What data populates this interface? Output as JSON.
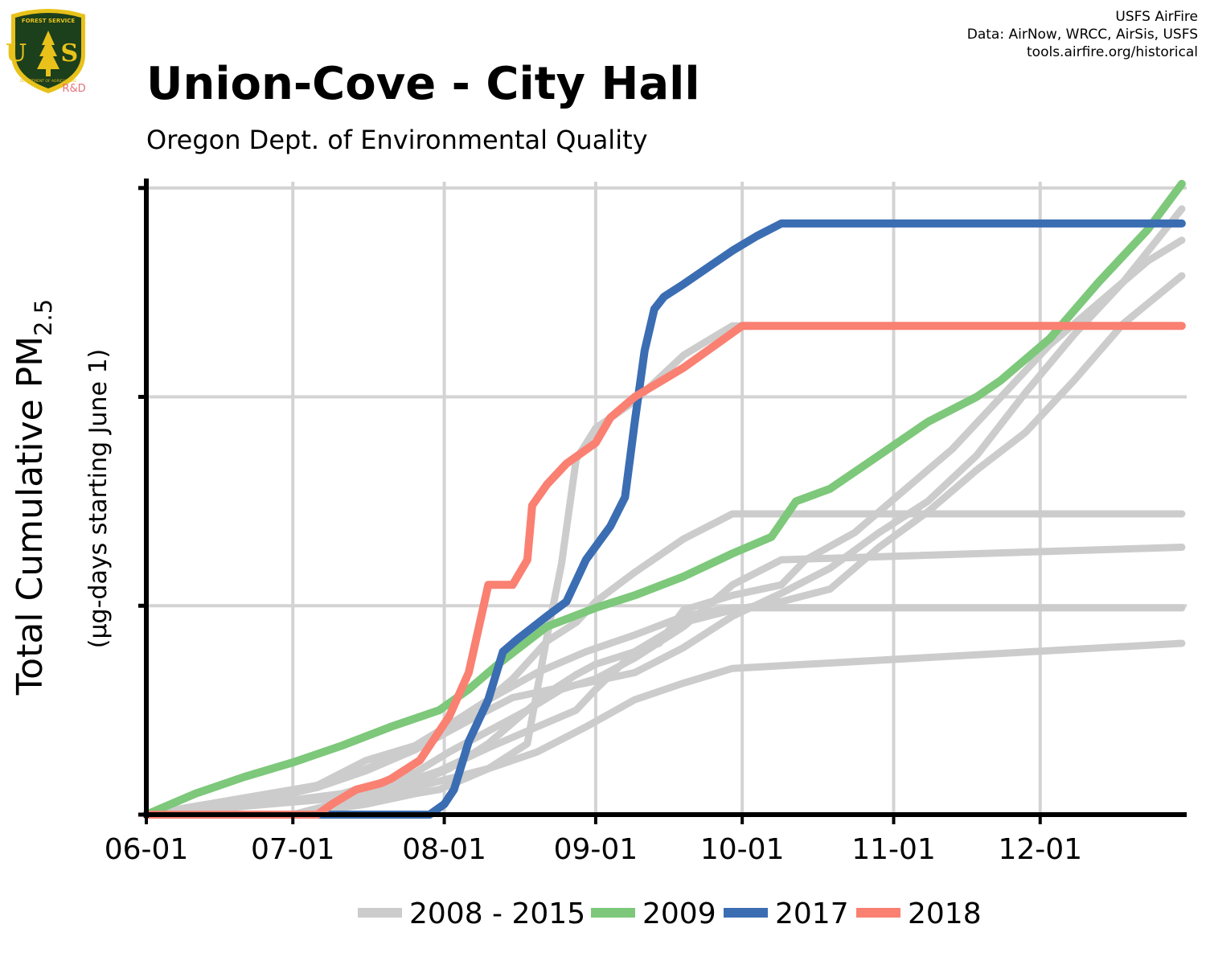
{
  "header": {
    "title": "Union-Cove - City Hall",
    "subtitle": "Oregon Dept. of Environmental Quality",
    "credits": [
      "USFS AirFire",
      "Data: AirNow, WRCC, AirSis, USFS",
      "tools.airfire.org/historical"
    ],
    "logo": {
      "top_text": "FOREST SERVICE",
      "letters": "U S",
      "bottom_text": "DEPARTMENT OF AGRICULTURE",
      "tag": "R&D"
    }
  },
  "colors": {
    "history": "#cccccc",
    "y2009": "#7dc87a",
    "y2017": "#3b6db3",
    "y2018": "#fa8072",
    "grid": "#d3d3d3",
    "axis": "#000000",
    "logo_shield": "#1c3f1c",
    "logo_gold": "#e8c21a",
    "logo_tag": "#e4717a"
  },
  "chart_data": {
    "type": "line",
    "title": "Union-Cove - City Hall",
    "subtitle": "Oregon Dept. of Environmental Quality",
    "xlabel": "",
    "ylabel": "Total Cumulative PM2.5",
    "ylabel_main": "Total Cumulative PM",
    "ylabel_sub": "2.5",
    "ylabel2": "(µg-days starting June 1)",
    "x_units": "days since June 1",
    "x_ticks": [
      {
        "day": 0,
        "label": "06-01"
      },
      {
        "day": 30,
        "label": "07-01"
      },
      {
        "day": 61,
        "label": "08-01"
      },
      {
        "day": 92,
        "label": "09-01"
      },
      {
        "day": 122,
        "label": "10-01"
      },
      {
        "day": 153,
        "label": "11-01"
      },
      {
        "day": 183,
        "label": "12-01"
      }
    ],
    "xlim": [
      0,
      213
    ],
    "y_ticks": [
      0,
      1,
      2,
      3
    ],
    "ylim": [
      0,
      3.03
    ],
    "grid": true,
    "legend": {
      "placement": "bottom",
      "entries": [
        {
          "label": "2008 - 2015",
          "color": "#cccccc"
        },
        {
          "label": "2009",
          "color": "#7dc87a"
        },
        {
          "label": "2017",
          "color": "#3b6db3"
        },
        {
          "label": "2018",
          "color": "#fa8072"
        }
      ]
    },
    "series": [
      {
        "name": "2008 - 2015",
        "color": "#cccccc",
        "points": [
          [
            0,
            0
          ],
          [
            20,
            0.08
          ],
          [
            35,
            0.14
          ],
          [
            45,
            0.26
          ],
          [
            55,
            0.33
          ],
          [
            62,
            0.43
          ],
          [
            70,
            0.55
          ],
          [
            80,
            0.68
          ],
          [
            90,
            0.78
          ],
          [
            100,
            0.86
          ],
          [
            110,
            0.95
          ],
          [
            120,
            0.99
          ],
          [
            212,
            0.99
          ]
        ]
      },
      {
        "name": "2008 - 2015",
        "color": "#cccccc",
        "points": [
          [
            0,
            0
          ],
          [
            30,
            0
          ],
          [
            40,
            0.06
          ],
          [
            50,
            0.13
          ],
          [
            60,
            0.21
          ],
          [
            70,
            0.32
          ],
          [
            80,
            0.42
          ],
          [
            88,
            0.5
          ],
          [
            92,
            0.6
          ],
          [
            100,
            0.78
          ],
          [
            110,
            0.92
          ],
          [
            120,
            0.98
          ],
          [
            130,
            1.02
          ],
          [
            140,
            1.08
          ],
          [
            150,
            1.28
          ],
          [
            160,
            1.45
          ],
          [
            170,
            1.65
          ],
          [
            180,
            1.83
          ],
          [
            190,
            2.08
          ],
          [
            200,
            2.35
          ],
          [
            212,
            2.58
          ]
        ]
      },
      {
        "name": "2008 - 2015",
        "color": "#cccccc",
        "points": [
          [
            0,
            0
          ],
          [
            30,
            0
          ],
          [
            40,
            0.05
          ],
          [
            50,
            0.1
          ],
          [
            60,
            0.16
          ],
          [
            70,
            0.22
          ],
          [
            80,
            0.3
          ],
          [
            90,
            0.42
          ],
          [
            100,
            0.55
          ],
          [
            110,
            0.63
          ],
          [
            120,
            0.7
          ],
          [
            212,
            0.82
          ]
        ]
      },
      {
        "name": "2008 - 2015",
        "color": "#cccccc",
        "points": [
          [
            0,
            0
          ],
          [
            20,
            0.05
          ],
          [
            35,
            0.13
          ],
          [
            45,
            0.22
          ],
          [
            55,
            0.32
          ],
          [
            62,
            0.42
          ],
          [
            70,
            0.55
          ],
          [
            75,
            0.65
          ],
          [
            82,
            0.83
          ],
          [
            88,
            0.92
          ],
          [
            92,
            1.02
          ],
          [
            100,
            1.16
          ],
          [
            110,
            1.32
          ],
          [
            120,
            1.44
          ],
          [
            212,
            1.44
          ]
        ]
      },
      {
        "name": "2008 - 2015",
        "color": "#cccccc",
        "points": [
          [
            0,
            0
          ],
          [
            20,
            0.04
          ],
          [
            40,
            0.08
          ],
          [
            55,
            0.15
          ],
          [
            62,
            0.22
          ],
          [
            70,
            0.34
          ],
          [
            82,
            0.58
          ],
          [
            88,
            0.67
          ],
          [
            92,
            0.72
          ],
          [
            100,
            0.78
          ],
          [
            105,
            0.82
          ],
          [
            110,
            0.98
          ],
          [
            120,
            1.05
          ],
          [
            130,
            1.1
          ],
          [
            135,
            1.22
          ],
          [
            145,
            1.35
          ],
          [
            155,
            1.55
          ],
          [
            165,
            1.75
          ],
          [
            175,
            2.0
          ],
          [
            185,
            2.25
          ],
          [
            195,
            2.45
          ],
          [
            205,
            2.65
          ],
          [
            212,
            2.75
          ]
        ]
      },
      {
        "name": "2008 - 2015",
        "color": "#cccccc",
        "points": [
          [
            0,
            0
          ],
          [
            20,
            0.06
          ],
          [
            35,
            0.13
          ],
          [
            45,
            0.21
          ],
          [
            55,
            0.31
          ],
          [
            62,
            0.4
          ],
          [
            70,
            0.5
          ],
          [
            75,
            0.56
          ],
          [
            83,
            0.6
          ],
          [
            90,
            0.63
          ],
          [
            100,
            0.68
          ],
          [
            110,
            0.8
          ],
          [
            120,
            0.95
          ],
          [
            130,
            1.06
          ],
          [
            140,
            1.18
          ],
          [
            150,
            1.35
          ],
          [
            160,
            1.5
          ],
          [
            170,
            1.72
          ],
          [
            180,
            2.02
          ],
          [
            190,
            2.3
          ],
          [
            200,
            2.55
          ],
          [
            212,
            2.9
          ]
        ]
      },
      {
        "name": "2008 - 2015",
        "color": "#cccccc",
        "points": [
          [
            0,
            0
          ],
          [
            30,
            0
          ],
          [
            45,
            0.05
          ],
          [
            55,
            0.1
          ],
          [
            60,
            0.12
          ],
          [
            70,
            0.22
          ],
          [
            78,
            0.34
          ],
          [
            82,
            0.85
          ],
          [
            85,
            1.2
          ],
          [
            88,
            1.7
          ],
          [
            92,
            1.85
          ],
          [
            100,
            1.98
          ],
          [
            110,
            2.2
          ],
          [
            120,
            2.34
          ],
          [
            212,
            2.34
          ]
        ]
      },
      {
        "name": "2008 - 2015",
        "color": "#cccccc",
        "points": [
          [
            0,
            0
          ],
          [
            20,
            0.04
          ],
          [
            40,
            0.1
          ],
          [
            55,
            0.2
          ],
          [
            62,
            0.3
          ],
          [
            70,
            0.4
          ],
          [
            78,
            0.5
          ],
          [
            85,
            0.6
          ],
          [
            92,
            0.65
          ],
          [
            100,
            0.75
          ],
          [
            110,
            0.9
          ],
          [
            120,
            1.1
          ],
          [
            130,
            1.22
          ],
          [
            212,
            1.28
          ]
        ]
      },
      {
        "name": "2009",
        "color": "#7dc87a",
        "points": [
          [
            0,
            0
          ],
          [
            10,
            0.1
          ],
          [
            20,
            0.18
          ],
          [
            30,
            0.25
          ],
          [
            40,
            0.33
          ],
          [
            50,
            0.42
          ],
          [
            60,
            0.5
          ],
          [
            66,
            0.6
          ],
          [
            72,
            0.72
          ],
          [
            82,
            0.9
          ],
          [
            92,
            0.99
          ],
          [
            100,
            1.05
          ],
          [
            110,
            1.14
          ],
          [
            120,
            1.25
          ],
          [
            128,
            1.33
          ],
          [
            133,
            1.5
          ],
          [
            140,
            1.56
          ],
          [
            150,
            1.72
          ],
          [
            160,
            1.88
          ],
          [
            170,
            2.0
          ],
          [
            175,
            2.08
          ],
          [
            185,
            2.28
          ],
          [
            195,
            2.55
          ],
          [
            205,
            2.8
          ],
          [
            212,
            3.02
          ]
        ]
      },
      {
        "name": "2017",
        "color": "#3b6db3",
        "points": [
          [
            0,
            0
          ],
          [
            58,
            0
          ],
          [
            61,
            0.05
          ],
          [
            63,
            0.12
          ],
          [
            66,
            0.35
          ],
          [
            70,
            0.55
          ],
          [
            73,
            0.78
          ],
          [
            76,
            0.84
          ],
          [
            82,
            0.95
          ],
          [
            86,
            1.02
          ],
          [
            90,
            1.22
          ],
          [
            95,
            1.38
          ],
          [
            98,
            1.52
          ],
          [
            100,
            1.88
          ],
          [
            102,
            2.22
          ],
          [
            104,
            2.42
          ],
          [
            106,
            2.48
          ],
          [
            110,
            2.54
          ],
          [
            115,
            2.62
          ],
          [
            120,
            2.7
          ],
          [
            125,
            2.77
          ],
          [
            130,
            2.83
          ],
          [
            212,
            2.83
          ]
        ]
      },
      {
        "name": "2018",
        "color": "#fa8072",
        "points": [
          [
            0,
            0
          ],
          [
            35,
            0
          ],
          [
            38,
            0.05
          ],
          [
            43,
            0.12
          ],
          [
            48,
            0.15
          ],
          [
            50,
            0.17
          ],
          [
            56,
            0.26
          ],
          [
            62,
            0.47
          ],
          [
            66,
            0.68
          ],
          [
            70,
            1.1
          ],
          [
            75,
            1.1
          ],
          [
            78,
            1.22
          ],
          [
            79,
            1.48
          ],
          [
            82,
            1.58
          ],
          [
            86,
            1.68
          ],
          [
            92,
            1.78
          ],
          [
            95,
            1.9
          ],
          [
            100,
            2.0
          ],
          [
            110,
            2.14
          ],
          [
            122,
            2.34
          ],
          [
            212,
            2.34
          ]
        ]
      }
    ]
  }
}
